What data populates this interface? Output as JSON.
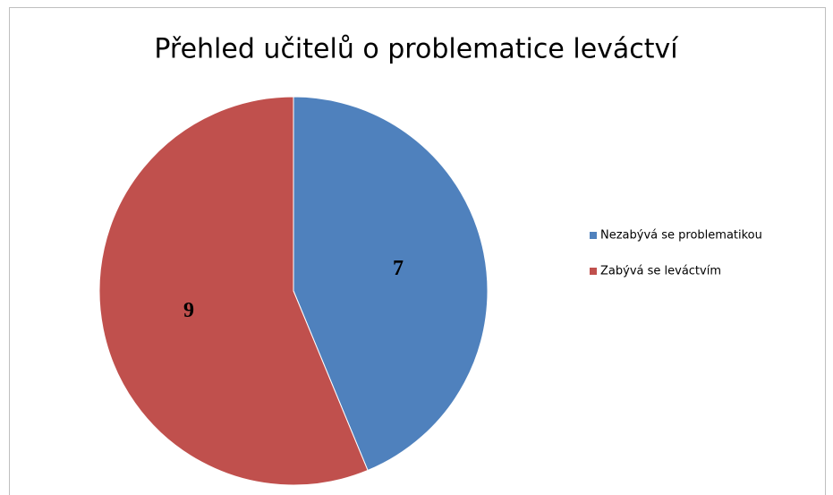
{
  "chart_data": {
    "type": "pie",
    "title": "Přehled učitelů o problematice leváctví",
    "categories": [
      "Nezabývá se problematikou",
      "Zabývá se leváctvím"
    ],
    "values": [
      7,
      9
    ],
    "colors": [
      "#4f81bd",
      "#c0504d"
    ],
    "legend": "right"
  }
}
